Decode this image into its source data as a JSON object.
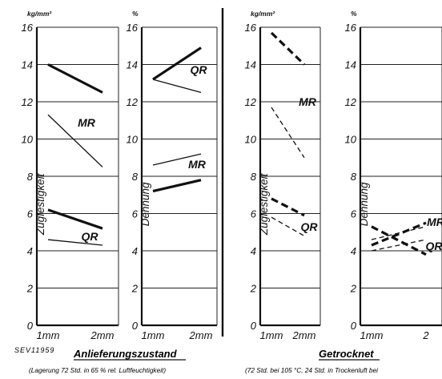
{
  "figure": {
    "code": "SEV11959",
    "caption_left": "Anlieferungszustand",
    "caption_left_sub": "(Lagerung 72 Std. in 65 % rel. Luftfeuchtigkeit)",
    "caption_right": "Getrocknet",
    "caption_right_sub": "(72 Std. bei 105 °C, 24 Std. in Trockenluft bei"
  },
  "chart_data": [
    {
      "type": "line",
      "id": "p1",
      "unit": "kg/mm²",
      "ylabel": "Zugfestigkeit",
      "categories": [
        "1mm",
        "2mm"
      ],
      "ylim": [
        0,
        16
      ],
      "yticks": [
        0,
        2,
        4,
        6,
        8,
        10,
        12,
        14,
        16
      ],
      "series": [
        {
          "name": "MR",
          "values": [
            14.0,
            12.5
          ],
          "style": "thick-solid"
        },
        {
          "name": "MR",
          "values": [
            11.3,
            8.5
          ],
          "style": "thin-solid"
        },
        {
          "name": "QR",
          "values": [
            6.2,
            5.2
          ],
          "style": "thick-solid"
        },
        {
          "name": "QR",
          "values": [
            4.6,
            4.3
          ],
          "style": "thin-solid"
        }
      ]
    },
    {
      "type": "line",
      "id": "p2",
      "unit": "%",
      "ylabel": "Dehnung",
      "categories": [
        "1mm",
        "2mm"
      ],
      "ylim": [
        0,
        16
      ],
      "yticks": [
        0,
        2,
        4,
        6,
        8,
        10,
        12,
        14,
        16
      ],
      "series": [
        {
          "name": "QR",
          "values": [
            13.2,
            14.9
          ],
          "style": "thick-solid"
        },
        {
          "name": "QR",
          "values": [
            13.2,
            12.5
          ],
          "style": "thin-solid"
        },
        {
          "name": "MR",
          "values": [
            8.6,
            9.2
          ],
          "style": "thin-solid"
        },
        {
          "name": "MR",
          "values": [
            7.2,
            7.8
          ],
          "style": "thick-solid"
        }
      ]
    },
    {
      "type": "line",
      "id": "p3",
      "unit": "kg/mm²",
      "ylabel": "Zugfestigkeit",
      "categories": [
        "1mm",
        "2mm"
      ],
      "ylim": [
        0,
        16
      ],
      "yticks": [
        0,
        2,
        4,
        6,
        8,
        10,
        12,
        14,
        16
      ],
      "series": [
        {
          "name": "MR",
          "values": [
            15.7,
            14.0
          ],
          "style": "thick-dashed"
        },
        {
          "name": "MR",
          "values": [
            11.7,
            9.0
          ],
          "style": "thin-dashed"
        },
        {
          "name": "QR",
          "values": [
            6.8,
            5.9
          ],
          "style": "thick-dashed"
        },
        {
          "name": "QR",
          "values": [
            5.8,
            4.8
          ],
          "style": "thin-dashed"
        }
      ]
    },
    {
      "type": "line",
      "id": "p4",
      "unit": "%",
      "ylabel": "Dehnung",
      "categories": [
        "1mm",
        "2"
      ],
      "ylim": [
        0,
        16
      ],
      "yticks": [
        0,
        2,
        4,
        6,
        8,
        10,
        12,
        14,
        16
      ],
      "series": [
        {
          "name": "MR",
          "values": [
            4.3,
            5.5
          ],
          "style": "thick-dashed"
        },
        {
          "name": "MR",
          "values": [
            5.3,
            3.8
          ],
          "style": "thick-dashed"
        },
        {
          "name": "QR",
          "values": [
            4.0,
            4.6
          ],
          "style": "thin-dashed"
        },
        {
          "name": "QR",
          "values": [
            4.6,
            5.3
          ],
          "style": "thin-dashed"
        }
      ]
    }
  ]
}
